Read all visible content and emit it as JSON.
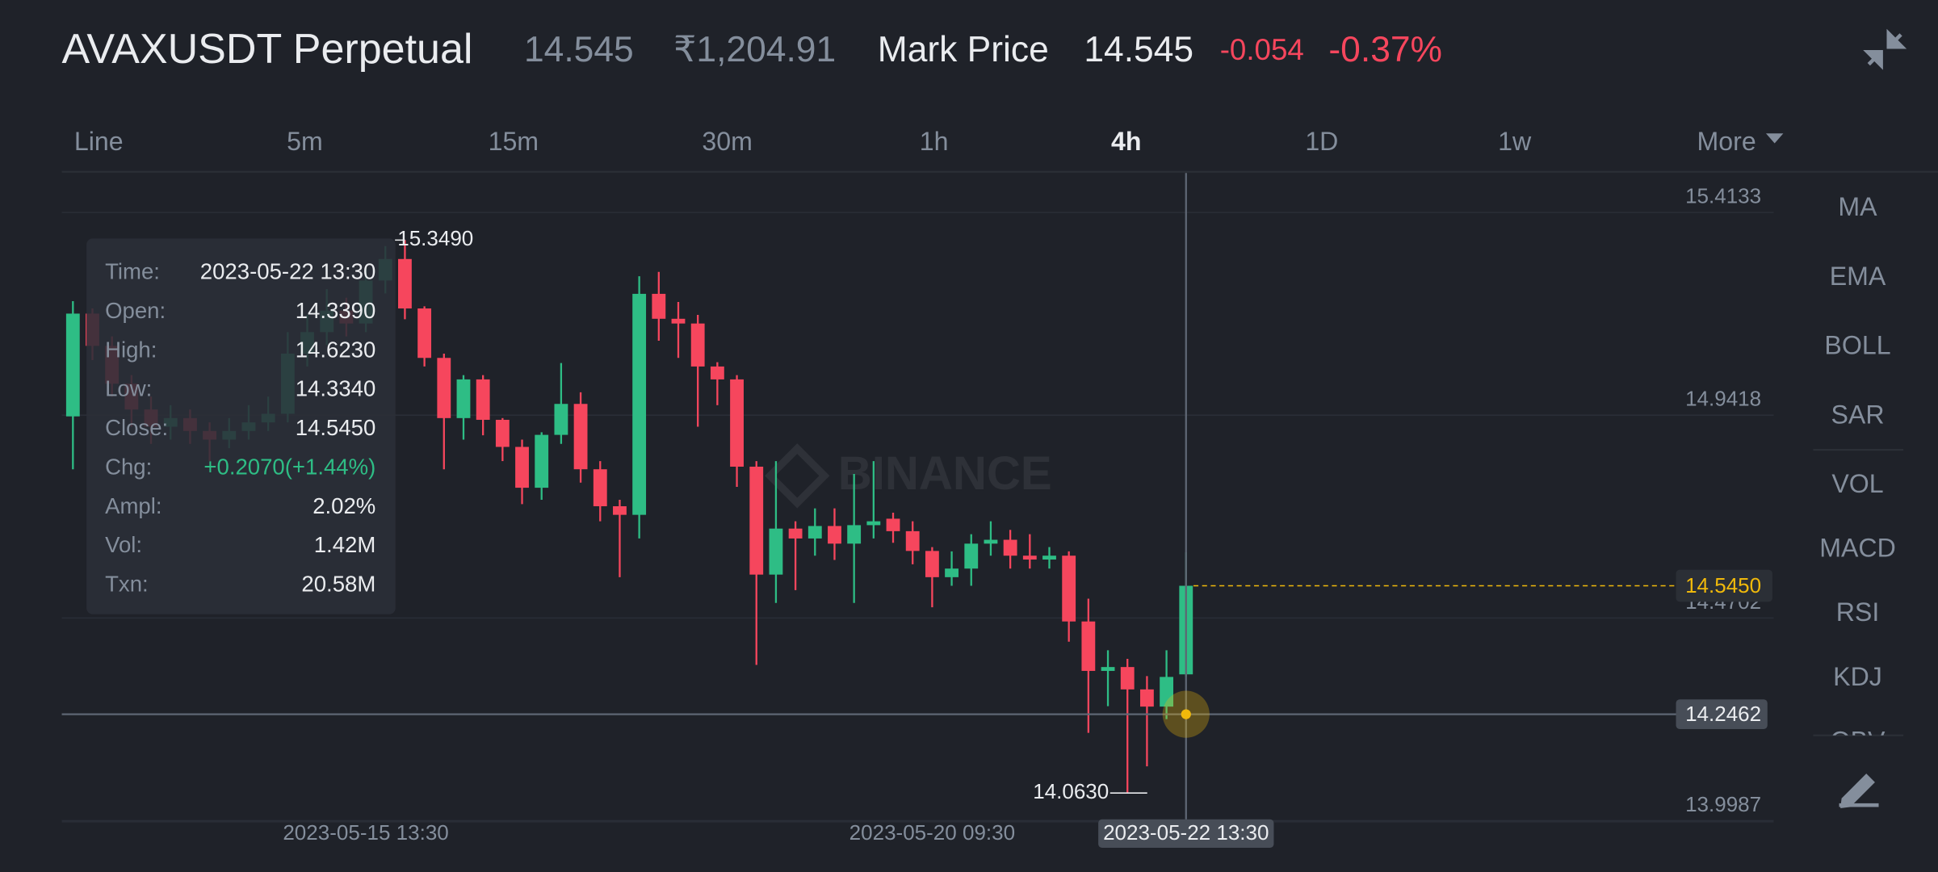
{
  "header": {
    "symbol": "AVAXUSDT Perpetual",
    "last_price": "14.545",
    "fiat_price": "₹1,204.91",
    "mark_label": "Mark Price",
    "mark_price": "14.545",
    "change": "-0.054",
    "change_pct": "-0.37%"
  },
  "tabs": {
    "items": [
      "Line",
      "5m",
      "15m",
      "30m",
      "1h",
      "4h",
      "1D",
      "1w",
      "More"
    ],
    "active": "4h"
  },
  "indicators": [
    "MA",
    "EMA",
    "BOLL",
    "SAR",
    "VOL",
    "MACD",
    "RSI",
    "KDJ",
    "OBV"
  ],
  "tooltip": {
    "rows": [
      {
        "label": "Time:",
        "value": "2023-05-22 13:30"
      },
      {
        "label": "Open:",
        "value": "14.3390"
      },
      {
        "label": "High:",
        "value": "14.6230"
      },
      {
        "label": "Low:",
        "value": "14.3340"
      },
      {
        "label": "Close:",
        "value": "14.5450"
      },
      {
        "label": "Chg:",
        "value": "+0.2070(+1.44%)",
        "color": "#2ebd85"
      },
      {
        "label": "Ampl:",
        "value": "2.02%"
      },
      {
        "label": "Vol:",
        "value": "1.42M"
      },
      {
        "label": "Txn:",
        "value": "20.58M"
      }
    ]
  },
  "chart_data": {
    "type": "candlestick",
    "watermark": "BINANCE",
    "categories": [
      null,
      null,
      null,
      null,
      null,
      null,
      null,
      null,
      null,
      null,
      null,
      null,
      null,
      null,
      null,
      "2023-05-15 13:30",
      null,
      null,
      null,
      null,
      null,
      null,
      null,
      null,
      null,
      null,
      null,
      null,
      null,
      null,
      null,
      null,
      null,
      null,
      null,
      null,
      null,
      null,
      null,
      null,
      null,
      null,
      null,
      null,
      "2023-05-20 09:30",
      null,
      null,
      null,
      null,
      null,
      null,
      null,
      null,
      null,
      null,
      null,
      null,
      "2023-05-22 13:30"
    ],
    "open": [
      14.939,
      15.178,
      15.103,
      15.015,
      14.955,
      14.915,
      14.935,
      14.905,
      14.885,
      14.905,
      14.925,
      14.945,
      15.085,
      15.135,
      15.185,
      15.155,
      15.255,
      15.305,
      15.19,
      15.075,
      14.935,
      15.025,
      14.931,
      14.868,
      14.773,
      14.896,
      14.968,
      14.816,
      14.73,
      14.71,
      15.224,
      15.166,
      15.155,
      15.055,
      15.025,
      14.822,
      14.571,
      14.678,
      14.655,
      14.684,
      14.643,
      14.686,
      14.701,
      14.672,
      14.626,
      14.565,
      14.585,
      14.643,
      14.652,
      14.615,
      14.606,
      14.615,
      14.462,
      14.347,
      14.356,
      14.304,
      14.264,
      14.339
    ],
    "high": [
      15.207,
      15.19,
      15.125,
      15.035,
      14.985,
      14.965,
      14.955,
      14.925,
      14.935,
      14.965,
      14.985,
      15.135,
      15.175,
      15.235,
      15.215,
      15.285,
      15.335,
      15.349,
      15.195,
      15.085,
      15.035,
      15.035,
      14.935,
      14.885,
      14.902,
      15.063,
      14.995,
      14.835,
      14.745,
      15.265,
      15.275,
      15.205,
      15.175,
      15.065,
      15.035,
      14.835,
      14.835,
      14.695,
      14.725,
      14.725,
      14.805,
      14.835,
      14.715,
      14.695,
      14.635,
      14.625,
      14.665,
      14.695,
      14.675,
      14.665,
      14.635,
      14.625,
      14.515,
      14.395,
      14.375,
      14.335,
      14.395,
      14.623
    ],
    "low": [
      14.816,
      15.07,
      14.985,
      14.915,
      14.875,
      14.885,
      14.875,
      14.835,
      14.865,
      14.885,
      14.905,
      14.925,
      15.055,
      15.105,
      15.125,
      15.135,
      15.225,
      15.165,
      15.055,
      14.816,
      14.885,
      14.895,
      14.835,
      14.735,
      14.745,
      14.875,
      14.785,
      14.695,
      14.565,
      14.655,
      15.115,
      15.075,
      14.915,
      14.965,
      14.775,
      14.361,
      14.505,
      14.535,
      14.615,
      14.605,
      14.505,
      14.655,
      14.645,
      14.595,
      14.495,
      14.545,
      14.545,
      14.615,
      14.585,
      14.585,
      14.585,
      14.415,
      14.203,
      14.265,
      14.063,
      14.125,
      14.235,
      14.334
    ],
    "close": [
      15.178,
      15.103,
      15.015,
      14.955,
      14.915,
      14.935,
      14.905,
      14.885,
      14.905,
      14.925,
      14.945,
      15.085,
      15.135,
      15.185,
      15.155,
      15.255,
      15.305,
      15.19,
      15.075,
      14.935,
      15.025,
      14.931,
      14.868,
      14.773,
      14.896,
      14.968,
      14.816,
      14.73,
      14.71,
      15.224,
      15.166,
      15.155,
      15.055,
      15.025,
      14.822,
      14.571,
      14.678,
      14.655,
      14.684,
      14.643,
      14.686,
      14.695,
      14.672,
      14.626,
      14.565,
      14.585,
      14.643,
      14.652,
      14.615,
      14.606,
      14.615,
      14.462,
      14.347,
      14.356,
      14.304,
      14.264,
      14.333,
      14.545
    ],
    "up_color": "#2ebd85",
    "down_color": "#f6465d",
    "ylim": [
      13.996,
      15.505
    ],
    "yticks": [
      15.4133,
      14.9418,
      14.4702,
      13.9987
    ],
    "grid": true,
    "last_price": {
      "value": 14.545,
      "label": "14.5450"
    },
    "last_price_color": "#f0b90b",
    "crosshair_price": 14.2462,
    "max_label": {
      "value": 15.349,
      "label": "15.3490"
    },
    "min_label": {
      "value": 14.063,
      "label": "14.0630"
    }
  }
}
